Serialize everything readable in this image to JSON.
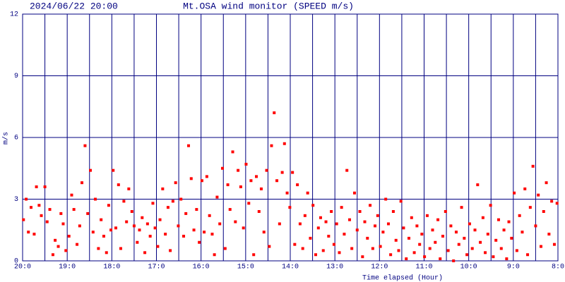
{
  "chart_data": {
    "type": "scatter",
    "timestamp": "2024/06/22 20:00",
    "title": "Mt.OSA wind monitor (SPEED m/s)",
    "y_label": "m/s",
    "x_label": "Time elapsed (Hour)",
    "xlim": [
      0,
      12
    ],
    "ylim": [
      0,
      12
    ],
    "yticks": [
      0,
      3,
      6,
      9,
      12
    ],
    "xticks": [
      {
        "value": 0,
        "label": "20:0"
      },
      {
        "value": 1,
        "label": "19:0"
      },
      {
        "value": 2,
        "label": "18:0"
      },
      {
        "value": 3,
        "label": "17:0"
      },
      {
        "value": 4,
        "label": "16:0"
      },
      {
        "value": 5,
        "label": "15:0"
      },
      {
        "value": 6,
        "label": "14:0"
      },
      {
        "value": 7,
        "label": "13:0"
      },
      {
        "value": 8,
        "label": "12:0"
      },
      {
        "value": 9,
        "label": "11:0"
      },
      {
        "value": 10,
        "label": "10:0"
      },
      {
        "value": 11,
        "label": "9:0"
      },
      {
        "value": 12,
        "label": "8:0"
      }
    ],
    "xgrid_minor": [
      0.5,
      1.5,
      2.5,
      3.5,
      4.5,
      5.5,
      6.5,
      7.5,
      8.5,
      9.5,
      10.5,
      11.5
    ],
    "grid": true,
    "color": "#ff0000",
    "grid_color": "#000080",
    "x": [
      0.02,
      0.08,
      0.13,
      0.19,
      0.26,
      0.31,
      0.37,
      0.42,
      0.5,
      0.55,
      0.61,
      0.68,
      0.73,
      0.8,
      0.86,
      0.91,
      0.97,
      1.04,
      1.1,
      1.15,
      1.22,
      1.28,
      1.33,
      1.4,
      1.46,
      1.52,
      1.58,
      1.63,
      1.7,
      1.76,
      1.82,
      1.88,
      1.93,
      1.98,
      2.03,
      2.09,
      2.15,
      2.2,
      2.27,
      2.33,
      2.38,
      2.45,
      2.5,
      2.57,
      2.62,
      2.68,
      2.74,
      2.8,
      2.86,
      2.92,
      2.97,
      3.03,
      3.08,
      3.14,
      3.2,
      3.26,
      3.31,
      3.37,
      3.43,
      3.49,
      3.55,
      3.61,
      3.66,
      3.72,
      3.78,
      3.84,
      3.9,
      3.96,
      4.02,
      4.07,
      4.13,
      4.19,
      4.25,
      4.3,
      4.36,
      4.42,
      4.48,
      4.54,
      4.6,
      4.65,
      4.71,
      4.77,
      4.83,
      4.89,
      4.95,
      5.01,
      5.07,
      5.12,
      5.18,
      5.24,
      5.3,
      5.35,
      5.41,
      5.47,
      5.53,
      5.58,
      5.64,
      5.7,
      5.76,
      5.82,
      5.87,
      5.93,
      5.99,
      6.05,
      6.1,
      6.16,
      6.22,
      6.28,
      6.33,
      6.39,
      6.45,
      6.51,
      6.57,
      6.63,
      6.68,
      6.74,
      6.8,
      6.86,
      6.92,
      6.98,
      7.04,
      7.1,
      7.15,
      7.21,
      7.27,
      7.33,
      7.38,
      7.44,
      7.5,
      7.56,
      7.62,
      7.67,
      7.73,
      7.79,
      7.85,
      7.9,
      7.96,
      8.02,
      8.08,
      8.14,
      8.2,
      8.25,
      8.31,
      8.37,
      8.43,
      8.48,
      8.54,
      8.6,
      8.66,
      8.72,
      8.78,
      8.84,
      8.9,
      8.95,
      9.01,
      9.07,
      9.13,
      9.19,
      9.25,
      9.31,
      9.36,
      9.42,
      9.48,
      9.54,
      9.6,
      9.66,
      9.72,
      9.78,
      9.84,
      9.9,
      9.96,
      10.02,
      10.08,
      10.14,
      10.2,
      10.26,
      10.32,
      10.37,
      10.43,
      10.49,
      10.55,
      10.61,
      10.67,
      10.73,
      10.79,
      10.85,
      10.9,
      10.96,
      11.02,
      11.08,
      11.14,
      11.2,
      11.26,
      11.32,
      11.38,
      11.44,
      11.5,
      11.56,
      11.62,
      11.68,
      11.74,
      11.8,
      11.86,
      11.92,
      11.98
    ],
    "values": [
      2.0,
      3.0,
      1.4,
      2.6,
      1.3,
      3.6,
      2.7,
      2.2,
      3.6,
      1.9,
      2.5,
      0.3,
      1.0,
      0.7,
      2.3,
      1.8,
      0.5,
      1.2,
      3.2,
      2.5,
      0.8,
      1.7,
      3.8,
      5.6,
      2.3,
      4.4,
      1.4,
      3.0,
      0.6,
      2.0,
      1.2,
      0.4,
      2.7,
      1.5,
      4.4,
      1.6,
      3.7,
      0.6,
      2.9,
      1.9,
      3.5,
      2.4,
      1.7,
      0.9,
      1.5,
      2.1,
      0.4,
      1.8,
      1.2,
      2.8,
      1.6,
      0.7,
      2.0,
      3.5,
      1.3,
      2.6,
      0.5,
      2.9,
      3.8,
      1.7,
      3.0,
      1.2,
      2.3,
      5.6,
      4.0,
      1.5,
      2.5,
      0.9,
      3.9,
      1.4,
      4.1,
      2.2,
      1.3,
      0.3,
      3.1,
      1.8,
      4.5,
      0.6,
      3.7,
      2.5,
      5.3,
      1.9,
      4.4,
      3.6,
      1.6,
      4.7,
      2.8,
      3.9,
      0.3,
      4.1,
      2.4,
      3.5,
      1.4,
      4.4,
      0.7,
      5.6,
      7.2,
      3.9,
      1.8,
      4.3,
      5.7,
      3.3,
      2.6,
      4.3,
      0.8,
      3.7,
      1.8,
      0.6,
      2.2,
      3.3,
      1.1,
      2.7,
      0.3,
      1.6,
      2.1,
      0.5,
      1.9,
      1.2,
      2.4,
      0.8,
      1.8,
      0.4,
      2.6,
      1.3,
      4.4,
      2.0,
      0.6,
      3.3,
      1.5,
      2.4,
      0.2,
      1.9,
      1.1,
      2.7,
      0.6,
      1.7,
      2.2,
      0.7,
      1.4,
      3.0,
      1.8,
      0.3,
      2.4,
      1.0,
      0.5,
      2.9,
      1.6,
      0.1,
      1.1,
      2.1,
      0.4,
      1.7,
      0.8,
      1.3,
      0.2,
      2.2,
      0.6,
      1.5,
      0.9,
      2.0,
      0.1,
      1.2,
      2.4,
      0.5,
      1.7,
      0.0,
      1.4,
      0.8,
      2.6,
      1.1,
      0.3,
      1.8,
      0.6,
      1.5,
      3.7,
      0.9,
      2.1,
      0.4,
      1.3,
      2.7,
      0.2,
      1.0,
      2.0,
      0.6,
      1.5,
      0.1,
      1.9,
      1.1,
      3.3,
      0.5,
      2.2,
      1.4,
      3.5,
      0.3,
      2.6,
      4.6,
      1.7,
      3.2,
      0.7,
      2.4,
      3.8,
      1.3,
      2.9,
      0.8,
      2.8
    ]
  }
}
